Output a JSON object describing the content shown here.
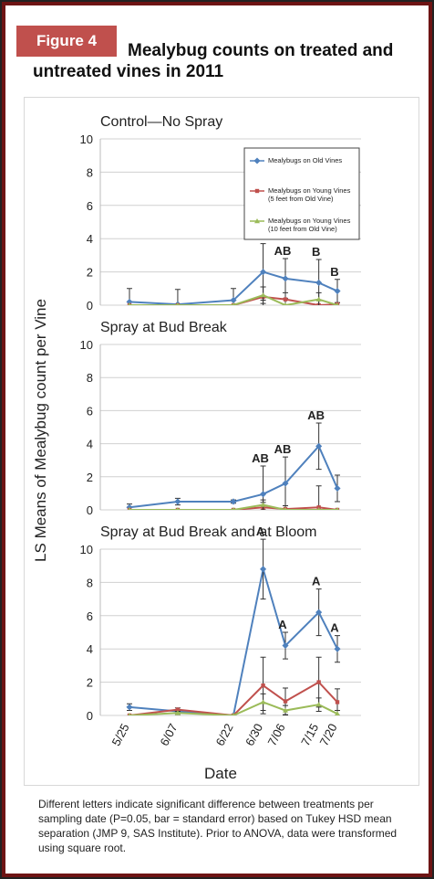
{
  "figure_label": "Figure 4",
  "title": "Mealybug counts on treated and untreated vines in 2011",
  "y_label": "LS Means of Mealybug count per Vine",
  "x_label": "Date",
  "caption": "Different letters indicate significant difference between treatments per sampling date (P=0.05, bar = standard error) based on Tukey HSD mean separation (JMP 9, SAS Institute). Prior to ANOVA, data were transformed using square root.",
  "chart_data": [
    {
      "type": "line",
      "title": "Control—No Spray",
      "legend": true,
      "x": [
        "5/25",
        "6/07",
        "6/22",
        "6/30",
        "7/06",
        "7/15",
        "7/20"
      ],
      "ylim": [
        0,
        10
      ],
      "yticks": [
        0,
        2,
        4,
        6,
        8,
        10
      ],
      "grid": true,
      "series": [
        {
          "name": "Mealybugs on Old Vines",
          "color": "#4f81bd",
          "values": [
            0.2,
            0.05,
            0.3,
            2.0,
            1.6,
            1.35,
            0.85
          ],
          "errors": [
            0.8,
            0.9,
            0.7,
            1.7,
            1.2,
            1.4,
            0.7
          ],
          "letters": [
            null,
            null,
            null,
            "AB",
            "AB",
            "B",
            "B"
          ]
        },
        {
          "name": "Mealybugs on Young Vines (5 feet from Old Vine)",
          "color": "#c0504d",
          "values": [
            0,
            0,
            0,
            0.5,
            0.35,
            0,
            0.05
          ],
          "errors": [
            0,
            0,
            0,
            0.6,
            0.4,
            0,
            0.1
          ]
        },
        {
          "name": "Mealybugs on Young Vines (10 feet from Old Vine)",
          "color": "#9bbb59",
          "values": [
            0,
            0,
            0,
            0.6,
            0,
            0.35,
            0
          ],
          "errors": [
            0,
            0,
            0,
            0.5,
            0,
            0.4,
            0
          ]
        }
      ]
    },
    {
      "type": "line",
      "title": "Spray at Bud Break",
      "x": [
        "5/25",
        "6/07",
        "6/22",
        "6/30",
        "7/06",
        "7/15",
        "7/20"
      ],
      "ylim": [
        0,
        10
      ],
      "yticks": [
        0,
        2,
        4,
        6,
        8,
        10
      ],
      "grid": true,
      "series": [
        {
          "color": "#4f81bd",
          "values": [
            0.15,
            0.5,
            0.5,
            0.95,
            1.6,
            3.85,
            1.3
          ],
          "errors": [
            0.2,
            0.2,
            0.1,
            1.7,
            1.6,
            1.4,
            0.8
          ],
          "letters": [
            null,
            null,
            null,
            "AB",
            "AB",
            "AB",
            null
          ]
        },
        {
          "color": "#c0504d",
          "values": [
            0,
            0,
            0,
            0.15,
            0.05,
            0.15,
            0
          ],
          "errors": [
            0,
            0,
            0,
            0.3,
            0.2,
            1.3,
            0
          ]
        },
        {
          "color": "#9bbb59",
          "values": [
            0,
            0,
            0,
            0.3,
            0,
            0,
            0
          ],
          "errors": [
            0,
            0,
            0,
            0.3,
            0,
            0,
            0
          ]
        }
      ]
    },
    {
      "type": "line",
      "title": "Spray at Bud Break and at Bloom",
      "x": [
        "5/25",
        "6/07",
        "6/22",
        "6/30",
        "7/06",
        "7/15",
        "7/20"
      ],
      "ylim": [
        0,
        10
      ],
      "yticks": [
        0,
        2,
        4,
        6,
        8,
        10
      ],
      "grid": true,
      "xtick_labels": true,
      "series": [
        {
          "color": "#4f81bd",
          "values": [
            0.5,
            0.25,
            0,
            8.8,
            4.2,
            6.2,
            4.0
          ],
          "errors": [
            0.2,
            0.1,
            0,
            1.8,
            0.8,
            1.4,
            0.8
          ],
          "letters": [
            null,
            null,
            null,
            "A",
            "A",
            "A",
            "A"
          ]
        },
        {
          "color": "#c0504d",
          "values": [
            0,
            0.35,
            0,
            1.8,
            0.85,
            2.0,
            0.8
          ],
          "errors": [
            0,
            0.1,
            0,
            1.7,
            0.8,
            1.5,
            0.8
          ]
        },
        {
          "color": "#9bbb59",
          "values": [
            0,
            0.15,
            0,
            0.8,
            0.3,
            0.65,
            0.1
          ],
          "errors": [
            0,
            0.1,
            0,
            0.5,
            0.3,
            0.4,
            0.2
          ]
        }
      ]
    }
  ]
}
